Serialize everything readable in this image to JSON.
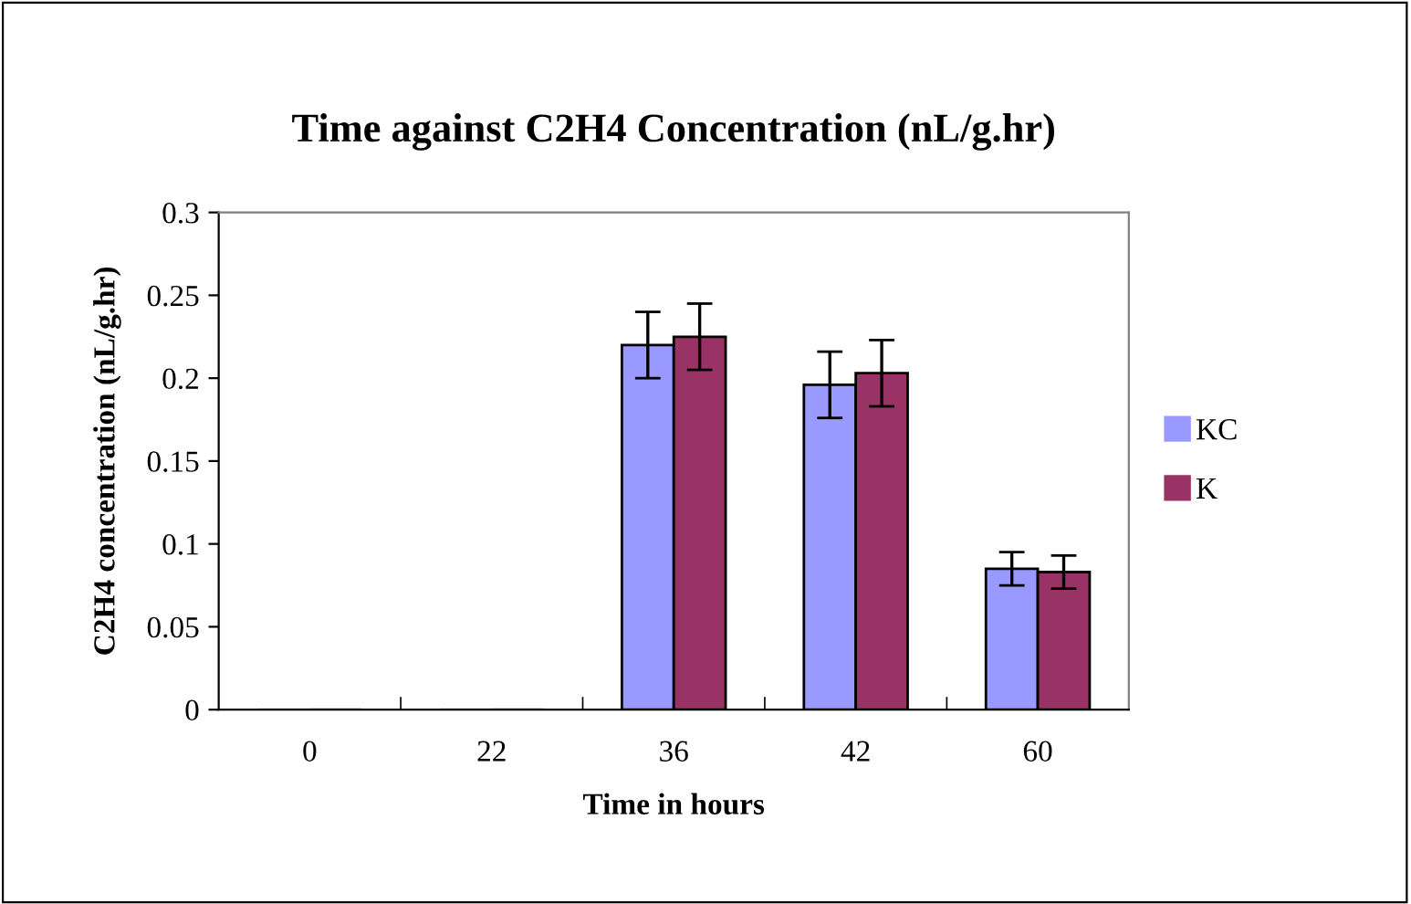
{
  "chart_data": {
    "type": "bar",
    "title": "Time against C2H4 Concentration (nL/g.hr)",
    "xlabel": "Time in hours",
    "ylabel": "C2H4 concentration (nL/g.hr)",
    "categories": [
      "0",
      "22",
      "36",
      "42",
      "60"
    ],
    "series": [
      {
        "name": "KC",
        "color": "#9999ff",
        "values": [
          0,
          0,
          0.22,
          0.196,
          0.085
        ],
        "errors": [
          null,
          null,
          0.02,
          0.02,
          0.01
        ]
      },
      {
        "name": "K",
        "color": "#993366",
        "values": [
          0,
          0,
          0.225,
          0.203,
          0.083
        ],
        "errors": [
          null,
          null,
          0.02,
          0.02,
          0.01
        ]
      }
    ],
    "ylim": [
      0,
      0.3
    ],
    "yticks": [
      0,
      0.05,
      0.1,
      0.15,
      0.2,
      0.25,
      0.3
    ],
    "grid": false,
    "legend": "right"
  }
}
